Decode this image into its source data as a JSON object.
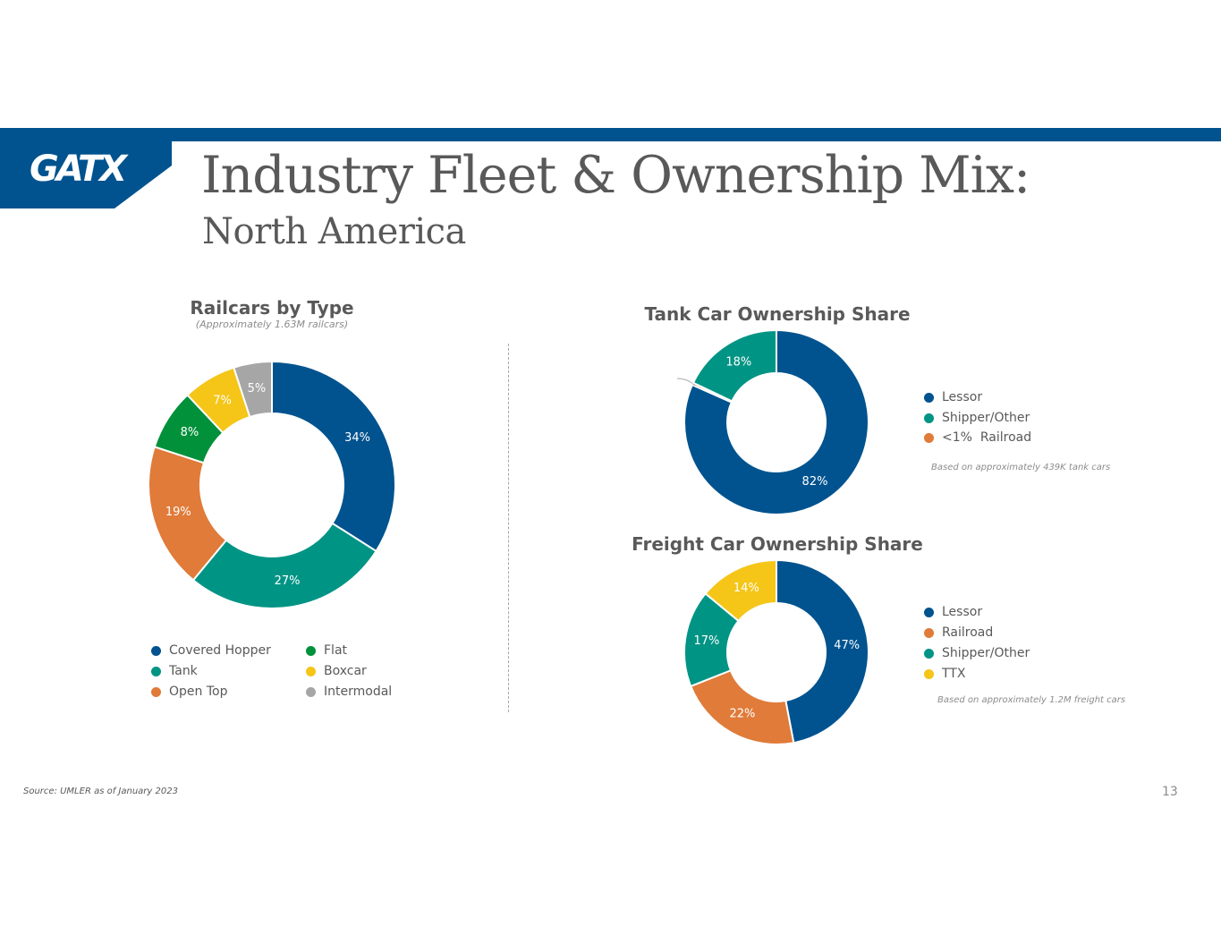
{
  "header": {
    "logo_text": "GATX",
    "title": "Industry Fleet & Ownership Mix:",
    "subtitle": "North America"
  },
  "colors": {
    "brand_blue": "#00538f",
    "teal": "#009484",
    "orange": "#e07b39",
    "green": "#00913a",
    "yellow": "#f5c518",
    "gray": "#a6a6a6",
    "text_gray": "#595959"
  },
  "chart_data": [
    {
      "id": "railcars-by-type",
      "type": "pie",
      "title": "Railcars by Type",
      "subtitle": "(Approximately 1.63M railcars)",
      "categories": [
        "Covered Hopper",
        "Tank",
        "Open Top",
        "Flat",
        "Boxcar",
        "Intermodal"
      ],
      "values": [
        34,
        27,
        19,
        8,
        7,
        5
      ],
      "labels": [
        "34%",
        "27%",
        "19%",
        "8%",
        "7%",
        "5%"
      ],
      "colors": [
        "#00538f",
        "#009484",
        "#e07b39",
        "#00913a",
        "#f5c518",
        "#a6a6a6"
      ],
      "legend": [
        "Covered Hopper",
        "Flat",
        "Tank",
        "Boxcar",
        "Open Top",
        "Intermodal"
      ],
      "legend_colors": [
        "#00538f",
        "#00913a",
        "#009484",
        "#f5c518",
        "#e07b39",
        "#a6a6a6"
      ]
    },
    {
      "id": "tank-car-ownership",
      "type": "pie",
      "title": "Tank Car Ownership Share",
      "categories": [
        "Lessor",
        "Railroad",
        "Shipper/Other"
      ],
      "values": [
        82,
        0.4,
        18
      ],
      "labels": [
        "82%",
        "<1%",
        "18%"
      ],
      "colors": [
        "#00538f",
        "#e07b39",
        "#009484"
      ],
      "legend": [
        "Lessor",
        "Shipper/Other",
        "<1%  Railroad"
      ],
      "legend_colors": [
        "#00538f",
        "#009484",
        "#e07b39"
      ],
      "note": "Based on approximately 439K tank cars"
    },
    {
      "id": "freight-car-ownership",
      "type": "pie",
      "title": "Freight Car Ownership Share",
      "categories": [
        "Lessor",
        "Railroad",
        "Shipper/Other",
        "TTX"
      ],
      "values": [
        47,
        22,
        17,
        14
      ],
      "labels": [
        "47%",
        "22%",
        "17%",
        "14%"
      ],
      "colors": [
        "#00538f",
        "#e07b39",
        "#009484",
        "#f5c518"
      ],
      "legend": [
        "Lessor",
        "Railroad",
        "Shipper/Other",
        "TTX"
      ],
      "legend_colors": [
        "#00538f",
        "#e07b39",
        "#009484",
        "#f5c518"
      ],
      "note": "Based on approximately 1.2M freight cars"
    }
  ],
  "footer": {
    "source": "Source: UMLER as of January 2023",
    "page_number": "13"
  }
}
